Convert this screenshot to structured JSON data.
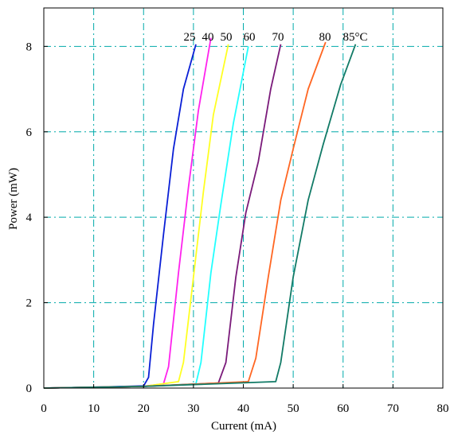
{
  "chart_data": {
    "type": "line",
    "xlabel": "Current (mA)",
    "ylabel": "Power (mW)",
    "xlim": [
      0,
      80
    ],
    "ylim": [
      0,
      8.9
    ],
    "x_ticks": [
      "0",
      "10",
      "20",
      "30",
      "40",
      "50",
      "60",
      "70",
      "80"
    ],
    "y_ticks": [
      "0",
      "2",
      "4",
      "6",
      "8"
    ],
    "x_tick_values": [
      0,
      10,
      20,
      30,
      40,
      50,
      60,
      70,
      80
    ],
    "y_tick_values": [
      0,
      2,
      4,
      6,
      8
    ],
    "grid": true,
    "grid_color": "#00aaaa",
    "series": [
      {
        "label": "25",
        "color": "#0a1fd6",
        "x": [
          0,
          10,
          20,
          21,
          22,
          24,
          26,
          28,
          30.5
        ],
        "y": [
          0,
          0.02,
          0.05,
          0.25,
          1.5,
          3.6,
          5.6,
          7.0,
          8.05
        ]
      },
      {
        "label": "40",
        "color": "#ff22ee",
        "x": [
          0,
          10,
          20,
          24,
          25,
          27,
          29,
          31,
          33.5
        ],
        "y": [
          0,
          0.02,
          0.04,
          0.1,
          0.5,
          2.7,
          4.7,
          6.5,
          8.2
        ]
      },
      {
        "label": "50",
        "color": "#ffff22",
        "x": [
          0,
          10,
          20,
          27,
          28,
          30,
          32,
          34,
          37
        ],
        "y": [
          0,
          0.02,
          0.04,
          0.15,
          0.6,
          2.6,
          4.6,
          6.4,
          8.05
        ]
      },
      {
        "label": "60",
        "color": "#22ffff",
        "x": [
          0,
          10,
          20,
          30.5,
          31.5,
          33.5,
          35.5,
          38,
          41
        ],
        "y": [
          0,
          0.02,
          0.04,
          0.1,
          0.6,
          2.7,
          4.3,
          6.2,
          8.0
        ]
      },
      {
        "label": "70",
        "color": "#7a1a7a",
        "x": [
          0,
          10,
          20,
          35,
          36.5,
          38.5,
          40.5,
          43,
          45.5,
          47.5
        ],
        "y": [
          0,
          0.02,
          0.04,
          0.12,
          0.6,
          2.6,
          4.1,
          5.3,
          7.0,
          8.05
        ]
      },
      {
        "label": "80",
        "color": "#ff6622",
        "x": [
          0,
          10,
          20,
          41,
          42.5,
          45,
          47.5,
          50,
          53,
          56.5
        ],
        "y": [
          0,
          0.02,
          0.04,
          0.15,
          0.7,
          2.6,
          4.4,
          5.6,
          7.0,
          8.1
        ]
      },
      {
        "label": "85°C",
        "color": "#117a66",
        "x": [
          0,
          10,
          20,
          46.5,
          47.5,
          50,
          53,
          56,
          59.5,
          62.5
        ],
        "y": [
          0,
          0.02,
          0.04,
          0.15,
          0.6,
          2.6,
          4.4,
          5.7,
          7.1,
          8.05
        ]
      }
    ],
    "series_labels": [
      "25",
      "40",
      "50",
      "60",
      "70",
      "80",
      "85°C"
    ]
  }
}
